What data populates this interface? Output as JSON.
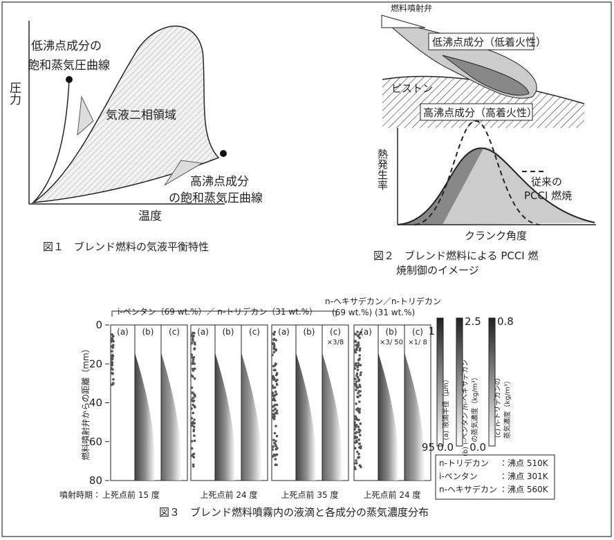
{
  "figure1": {
    "low_curve_label": [
      "低沸点成分の",
      "飽和蒸気圧曲線"
    ],
    "y_axis_label": "圧力",
    "region_label": "気液二相領域",
    "high_curve_label": [
      "高沸点成分",
      "の飽和蒸気圧曲線"
    ],
    "x_axis_label": "温度",
    "caption": "図１　ブレンド燃料の気液平衡特性"
  },
  "figure2": {
    "injector_label": "燃料噴射弁",
    "low_component_label": "低沸点成分（低着火性）",
    "piston_label": "ピストン",
    "high_component_label": "高沸点成分（高着火性）",
    "y_axis_label": "熱発生率",
    "x_axis_label": "クランク角度",
    "legend_label": [
      "従来の",
      "PCCI 燃焼"
    ],
    "caption": [
      "図２　ブレンド燃料による PCCI 燃",
      "焼制御のイメージ"
    ]
  },
  "figure3": {
    "y_axis_label": "燃料噴射弁からの距離（mm）",
    "y_ticks": [
      0,
      20,
      40,
      60,
      80
    ],
    "mixture_a_label": "i-ペンタン（69 wt.%）／ n-トリデカン（31 wt.%）",
    "mixture_b_label": [
      "n-ヘキサデカン／n-トリデカン",
      "(69 wt.%) (31 wt.%)"
    ],
    "timing_prefix": "噴射時期：",
    "groups": [
      {
        "panels": [
          {
            "label": "(a)"
          },
          {
            "label": "(b)"
          },
          {
            "label": "(c)"
          }
        ],
        "timing": "上死点前 15 度"
      },
      {
        "panels": [
          {
            "label": "(a)"
          },
          {
            "label": "(b)"
          },
          {
            "label": "(c)"
          }
        ],
        "timing": "上死点前 24 度"
      },
      {
        "panels": [
          {
            "label": "(a)"
          },
          {
            "label": "(b)"
          },
          {
            "label": "(c)",
            "scale": "×3/8"
          }
        ],
        "timing": "上死点前 35 度"
      },
      {
        "panels": [
          {
            "label": "(a)"
          },
          {
            "label": "(b)",
            "scale": "×3/ 50"
          },
          {
            "label": "(c)",
            "scale": "×1/ 8"
          }
        ],
        "timing": "上死点前 24 度"
      }
    ],
    "colorbars": [
      {
        "label": [
          "(a) 液滴半径（μm）"
        ],
        "top": "1",
        "bottom": "95"
      },
      {
        "label": [
          "(b) i-ペンタン /n-ヘキサデカン",
          "の蒸気濃度（kg/m³）"
        ],
        "top": "2.5",
        "bottom": "0.0"
      },
      {
        "label": [
          "(c) n-トリデカンの",
          "蒸気濃度（kg/m³）"
        ],
        "top": "0.8",
        "bottom": "0.0"
      }
    ],
    "boiling_points": [
      {
        "name": "n-トリデカン",
        "value": "：沸点 510K"
      },
      {
        "name": "i-ペンタン",
        "value": "：沸点 301K"
      },
      {
        "name": "n-ヘキサデカン",
        "value": "：沸点 560K"
      }
    ],
    "caption": "図３　ブレンド燃料噴霧内の液滴と各成分の蒸気濃度分布"
  }
}
